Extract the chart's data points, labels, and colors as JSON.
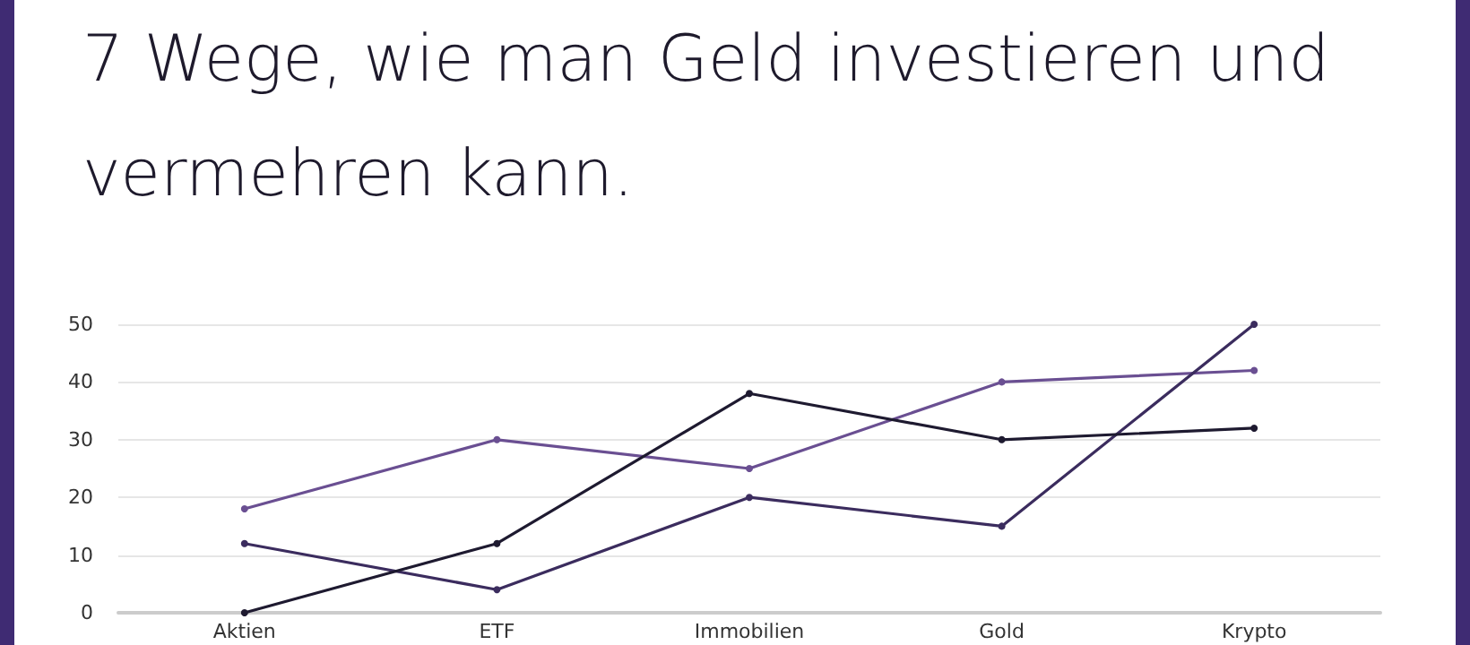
{
  "chart_data": {
    "type": "line",
    "title": "7 Wege, wie man Geld investieren und vermehren kann.",
    "categories": [
      "Aktien",
      "ETF",
      "Immobilien",
      "Gold",
      "Krypto"
    ],
    "series": [
      {
        "color": "#6a4f92",
        "values": [
          18,
          30,
          25,
          40,
          42
        ]
      },
      {
        "color": "#3b2c5e",
        "values": [
          12,
          4,
          20,
          15,
          50
        ]
      },
      {
        "color": "#1e1a30",
        "values": [
          0,
          12,
          38,
          30,
          32
        ]
      }
    ],
    "ylim": [
      0,
      50
    ],
    "yticks": [
      0,
      10,
      20,
      30,
      40,
      50
    ],
    "grid": "y",
    "marker": "circle",
    "line_style": "solid"
  }
}
